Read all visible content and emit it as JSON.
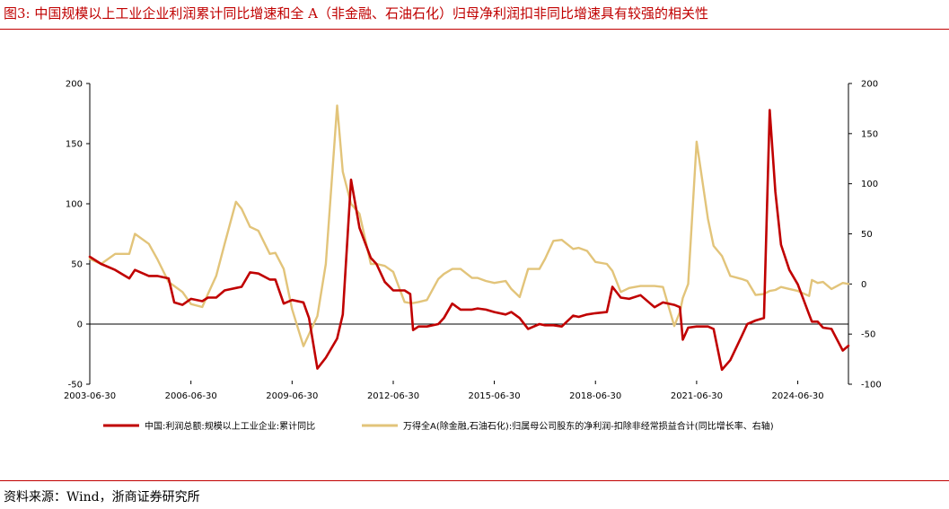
{
  "title": "图3:   中国规模以上工业企业利润累计同比增速和全 A（非金融、石油石化）归母净利润扣非同比增速具有较强的相关性",
  "source": "资料来源：Wind，浙商证券研究所",
  "colors": {
    "title": "#c00000",
    "series_red": "#c00000",
    "series_gold": "#e2c47a"
  },
  "chart_data": {
    "type": "line",
    "x_ticks": [
      "2003-06-30",
      "2006-06-30",
      "2009-06-30",
      "2012-06-30",
      "2015-06-30",
      "2018-06-30",
      "2021-06-30",
      "2024-06-30"
    ],
    "x_range": [
      "2003-06-30",
      "2025-12-31"
    ],
    "y_left": {
      "ticks": [
        "200",
        "150",
        "100",
        "50",
        "0",
        "-50"
      ],
      "range": [
        -50,
        200
      ]
    },
    "y_right": {
      "ticks": [
        "200",
        "150",
        "100",
        "50",
        "0",
        "-50",
        "-100"
      ],
      "range": [
        -100,
        200
      ]
    },
    "grid": false,
    "legend_position": "bottom",
    "series": [
      {
        "name": "中国:利润总额:规模以上工业企业:累计同比",
        "axis": "left",
        "color": "#c00000",
        "points": [
          [
            "2003-06-30",
            56
          ],
          [
            "2003-10-31",
            50
          ],
          [
            "2004-03-31",
            45
          ],
          [
            "2004-08-31",
            38
          ],
          [
            "2004-10-31",
            45
          ],
          [
            "2005-03-31",
            40
          ],
          [
            "2005-06-30",
            40
          ],
          [
            "2005-10-31",
            38
          ],
          [
            "2005-12-31",
            18
          ],
          [
            "2006-03-31",
            16
          ],
          [
            "2006-06-30",
            21
          ],
          [
            "2006-10-31",
            19
          ],
          [
            "2006-12-31",
            22
          ],
          [
            "2007-03-31",
            22
          ],
          [
            "2007-06-30",
            28
          ],
          [
            "2007-10-31",
            30
          ],
          [
            "2007-12-31",
            31
          ],
          [
            "2008-03-31",
            43
          ],
          [
            "2008-06-30",
            42
          ],
          [
            "2008-10-31",
            37
          ],
          [
            "2008-12-31",
            37
          ],
          [
            "2009-03-31",
            17
          ],
          [
            "2009-06-30",
            20
          ],
          [
            "2009-10-31",
            18
          ],
          [
            "2009-12-31",
            5
          ],
          [
            "2010-03-31",
            -37
          ],
          [
            "2010-06-30",
            -28
          ],
          [
            "2010-10-31",
            -12
          ],
          [
            "2010-12-31",
            8
          ],
          [
            "2011-03-31",
            120
          ],
          [
            "2011-06-30",
            80
          ],
          [
            "2011-10-31",
            55
          ],
          [
            "2011-12-31",
            50
          ],
          [
            "2012-03-31",
            35
          ],
          [
            "2012-06-30",
            28
          ],
          [
            "2012-10-31",
            28
          ],
          [
            "2012-12-31",
            25
          ],
          [
            "2013-01-31",
            -5
          ],
          [
            "2013-03-31",
            -2
          ],
          [
            "2013-06-30",
            -2
          ],
          [
            "2013-10-31",
            0
          ],
          [
            "2013-12-31",
            5
          ],
          [
            "2014-03-31",
            17
          ],
          [
            "2014-06-30",
            12
          ],
          [
            "2014-10-31",
            12
          ],
          [
            "2014-12-31",
            13
          ],
          [
            "2015-03-31",
            12
          ],
          [
            "2015-06-30",
            10
          ],
          [
            "2015-10-31",
            8
          ],
          [
            "2015-12-31",
            10
          ],
          [
            "2016-03-31",
            5
          ],
          [
            "2016-06-30",
            -4
          ],
          [
            "2016-10-31",
            0
          ],
          [
            "2016-12-31",
            -1
          ],
          [
            "2017-03-31",
            -1
          ],
          [
            "2017-06-30",
            -2
          ],
          [
            "2017-10-31",
            7
          ],
          [
            "2017-12-31",
            6
          ],
          [
            "2018-03-31",
            8
          ],
          [
            "2018-06-30",
            9
          ],
          [
            "2018-10-31",
            10
          ],
          [
            "2018-12-31",
            31
          ],
          [
            "2019-03-31",
            22
          ],
          [
            "2019-06-30",
            21
          ],
          [
            "2019-10-31",
            24
          ],
          [
            "2019-12-31",
            20
          ],
          [
            "2020-03-31",
            14
          ],
          [
            "2020-06-30",
            18
          ],
          [
            "2020-10-31",
            16
          ],
          [
            "2020-12-31",
            14
          ],
          [
            "2021-01-31",
            -13
          ],
          [
            "2021-03-31",
            -3
          ],
          [
            "2021-06-30",
            -2
          ],
          [
            "2021-10-31",
            -2
          ],
          [
            "2021-12-31",
            -4
          ],
          [
            "2022-03-31",
            -38
          ],
          [
            "2022-06-30",
            -30
          ],
          [
            "2022-10-31",
            -10
          ],
          [
            "2022-12-31",
            0
          ],
          [
            "2023-03-31",
            3
          ],
          [
            "2023-06-30",
            5
          ],
          [
            "2023-08-31",
            178
          ],
          [
            "2023-10-31",
            110
          ],
          [
            "2023-12-31",
            66
          ],
          [
            "2024-03-31",
            45
          ],
          [
            "2024-06-30",
            33
          ],
          [
            "2024-10-31",
            8
          ],
          [
            "2024-11-30",
            2
          ],
          [
            "2025-01-31",
            2
          ],
          [
            "2025-03-31",
            -3
          ],
          [
            "2025-06-30",
            -4
          ],
          [
            "2025-10-31",
            -22
          ],
          [
            "2025-12-31",
            -18
          ]
        ]
      },
      {
        "name": "万得全A(除金融,石油石化):归属母公司股东的净利润-扣除非经常损益合计(同比增长率、右轴)",
        "axis": "right",
        "color": "#e2c47a",
        "points": [
          [
            "2003-06-30",
            25
          ],
          [
            "2003-10-31",
            20
          ],
          [
            "2004-03-31",
            30
          ],
          [
            "2004-08-31",
            30
          ],
          [
            "2004-10-31",
            50
          ],
          [
            "2005-03-31",
            40
          ],
          [
            "2005-06-30",
            25
          ],
          [
            "2005-10-31",
            2
          ],
          [
            "2005-12-31",
            -2
          ],
          [
            "2006-03-31",
            -8
          ],
          [
            "2006-06-30",
            -20
          ],
          [
            "2006-10-31",
            -23
          ],
          [
            "2006-12-31",
            -10
          ],
          [
            "2007-03-31",
            8
          ],
          [
            "2007-06-30",
            40
          ],
          [
            "2007-10-31",
            82
          ],
          [
            "2007-12-31",
            75
          ],
          [
            "2008-03-31",
            57
          ],
          [
            "2008-06-30",
            53
          ],
          [
            "2008-10-31",
            30
          ],
          [
            "2008-12-31",
            31
          ],
          [
            "2009-03-31",
            15
          ],
          [
            "2009-06-30",
            -25
          ],
          [
            "2009-10-31",
            -62
          ],
          [
            "2009-12-31",
            -50
          ],
          [
            "2010-03-31",
            -32
          ],
          [
            "2010-06-30",
            20
          ],
          [
            "2010-10-31",
            178
          ],
          [
            "2010-12-31",
            112
          ],
          [
            "2011-03-31",
            80
          ],
          [
            "2011-06-30",
            70
          ],
          [
            "2011-10-31",
            20
          ],
          [
            "2011-12-31",
            20
          ],
          [
            "2012-03-31",
            18
          ],
          [
            "2012-06-30",
            12
          ],
          [
            "2012-10-31",
            -18
          ],
          [
            "2012-12-31",
            -19
          ],
          [
            "2013-01-31",
            -19
          ],
          [
            "2013-03-31",
            -18
          ],
          [
            "2013-06-30",
            -16
          ],
          [
            "2013-10-31",
            5
          ],
          [
            "2013-12-31",
            10
          ],
          [
            "2014-03-31",
            15
          ],
          [
            "2014-06-30",
            15
          ],
          [
            "2014-10-31",
            6
          ],
          [
            "2014-12-31",
            6
          ],
          [
            "2015-03-31",
            3
          ],
          [
            "2015-06-30",
            1
          ],
          [
            "2015-10-31",
            3
          ],
          [
            "2015-12-31",
            -5
          ],
          [
            "2016-03-31",
            -13
          ],
          [
            "2016-06-30",
            15
          ],
          [
            "2016-10-31",
            15
          ],
          [
            "2016-12-31",
            25
          ],
          [
            "2017-03-31",
            43
          ],
          [
            "2017-06-30",
            44
          ],
          [
            "2017-10-31",
            35
          ],
          [
            "2017-12-31",
            36
          ],
          [
            "2018-03-31",
            33
          ],
          [
            "2018-06-30",
            22
          ],
          [
            "2018-10-31",
            20
          ],
          [
            "2018-12-31",
            13
          ],
          [
            "2019-03-31",
            -8
          ],
          [
            "2019-06-30",
            -4
          ],
          [
            "2019-10-31",
            -2
          ],
          [
            "2019-12-31",
            -2
          ],
          [
            "2020-03-31",
            -2
          ],
          [
            "2020-06-30",
            -3
          ],
          [
            "2020-10-31",
            -42
          ],
          [
            "2020-12-31",
            -28
          ],
          [
            "2021-01-31",
            -14
          ],
          [
            "2021-03-31",
            0
          ],
          [
            "2021-06-30",
            142
          ],
          [
            "2021-10-31",
            65
          ],
          [
            "2021-12-31",
            38
          ],
          [
            "2022-03-31",
            28
          ],
          [
            "2022-06-30",
            8
          ],
          [
            "2022-10-31",
            5
          ],
          [
            "2022-12-31",
            3
          ],
          [
            "2023-03-31",
            -11
          ],
          [
            "2023-06-30",
            -10
          ],
          [
            "2023-08-31",
            -7
          ],
          [
            "2023-10-31",
            -6
          ],
          [
            "2023-12-31",
            -3
          ],
          [
            "2024-03-31",
            -5
          ],
          [
            "2024-06-30",
            -7
          ],
          [
            "2024-10-31",
            -12
          ],
          [
            "2024-11-30",
            4
          ],
          [
            "2025-01-31",
            1
          ],
          [
            "2025-03-31",
            2
          ],
          [
            "2025-06-30",
            -5
          ],
          [
            "2025-10-31",
            1
          ],
          [
            "2025-12-31",
            0
          ]
        ]
      }
    ]
  }
}
